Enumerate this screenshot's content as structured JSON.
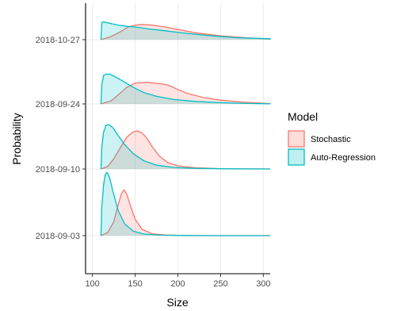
{
  "chart_data": {
    "type": "ridgeline",
    "title": "",
    "xlabel": "Size",
    "ylabel": "Probability",
    "xlim": [
      92,
      308
    ],
    "x_ticks": [
      100,
      150,
      200,
      250,
      300
    ],
    "grid": true,
    "legend": {
      "title": "Model",
      "placement": "right",
      "entries": [
        {
          "name": "Stochastic",
          "stroke": "#F8766D",
          "fill": "#F8766D"
        },
        {
          "name": "Auto-Regression",
          "stroke": "#00BFC4",
          "fill": "#00BFC4"
        }
      ]
    },
    "categories": [
      "2018-09-03",
      "2018-09-10",
      "2018-09-24",
      "2018-10-27"
    ],
    "series": [
      {
        "name": "Stochastic",
        "color": "#F8766D",
        "ridges": [
          {
            "category": "2018-09-03",
            "x": [
              110,
              118,
              125,
              130,
              134,
              137,
              140,
              145,
              150,
              158,
              170,
              185,
              210,
              250,
              310
            ],
            "y": [
              0,
              0.05,
              0.22,
              0.48,
              0.66,
              0.72,
              0.66,
              0.45,
              0.26,
              0.1,
              0.03,
              0.01,
              0,
              0,
              0
            ]
          },
          {
            "category": "2018-09-10",
            "x": [
              110,
              118,
              125,
              132,
              140,
              147,
              152,
              158,
              164,
              170,
              178,
              188,
              200,
              220,
              250,
              310
            ],
            "y": [
              0,
              0.04,
              0.16,
              0.32,
              0.5,
              0.58,
              0.6,
              0.57,
              0.48,
              0.35,
              0.21,
              0.1,
              0.05,
              0.02,
              0.005,
              0
            ]
          },
          {
            "category": "2018-09-24",
            "x": [
              110,
              122,
              130,
              140,
              150,
              165,
              178,
              188,
              198,
              210,
              230,
              250,
              275,
              300,
              310
            ],
            "y": [
              0,
              0.05,
              0.14,
              0.26,
              0.33,
              0.34,
              0.32,
              0.3,
              0.24,
              0.17,
              0.1,
              0.06,
              0.03,
              0.01,
              0.005
            ]
          },
          {
            "category": "2018-10-27",
            "x": [
              110,
              122,
              132,
              142,
              150,
              158,
              170,
              185,
              200,
              220,
              250,
              280,
              310
            ],
            "y": [
              0,
              0.05,
              0.12,
              0.2,
              0.23,
              0.24,
              0.23,
              0.2,
              0.16,
              0.11,
              0.06,
              0.03,
              0.01
            ]
          }
        ]
      },
      {
        "name": "Auto-Regression",
        "color": "#00BFC4",
        "ridges": [
          {
            "category": "2018-09-03",
            "x": [
              110,
              111,
              113,
              115,
              117,
              120,
              124,
              130,
              138,
              148,
              160,
              180,
              210,
              250,
              310
            ],
            "y": [
              0,
              0.45,
              0.8,
              0.96,
              1.0,
              0.92,
              0.7,
              0.4,
              0.18,
              0.07,
              0.025,
              0.008,
              0.002,
              0,
              0
            ]
          },
          {
            "category": "2018-09-10",
            "x": [
              110,
              111,
              113,
              116,
              119,
              124,
              130,
              138,
              148,
              160,
              175,
              195,
              220,
              260,
              310
            ],
            "y": [
              0,
              0.35,
              0.58,
              0.69,
              0.7,
              0.65,
              0.53,
              0.38,
              0.24,
              0.13,
              0.06,
              0.025,
              0.01,
              0.003,
              0
            ]
          },
          {
            "category": "2018-09-24",
            "x": [
              110,
              111,
              113,
              116,
              120,
              128,
              138,
              148,
              160,
              175,
              195,
              220,
              250,
              280,
              310
            ],
            "y": [
              0,
              0.3,
              0.45,
              0.47,
              0.47,
              0.42,
              0.34,
              0.26,
              0.18,
              0.12,
              0.07,
              0.04,
              0.02,
              0.008,
              0.003
            ]
          },
          {
            "category": "2018-10-27",
            "x": [
              110,
              111,
              113,
              120,
              130,
              140,
              150,
              165,
              185,
              210,
              240,
              270,
              310
            ],
            "y": [
              0,
              0.27,
              0.28,
              0.26,
              0.23,
              0.21,
              0.2,
              0.17,
              0.14,
              0.1,
              0.06,
              0.03,
              0.015
            ]
          }
        ]
      }
    ]
  }
}
